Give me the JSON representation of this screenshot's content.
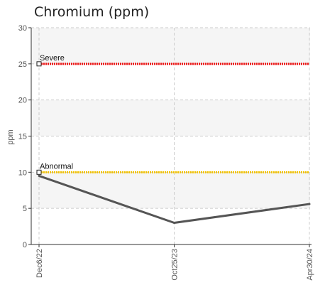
{
  "chart_data": {
    "type": "line",
    "title": "Chromium (ppm)",
    "ylabel": "ppm",
    "xlabel": "",
    "ylim": [
      0,
      30
    ],
    "yticks": [
      0,
      5,
      10,
      15,
      20,
      25,
      30
    ],
    "categories": [
      "Dec6/22",
      "Oct25/23",
      "Apr30/24"
    ],
    "series": [
      {
        "values": [
          9.5,
          3.0,
          5.6
        ],
        "color": "#555555"
      }
    ],
    "thresholds": [
      {
        "name": "Severe",
        "value": 25,
        "color": "#ee1111"
      },
      {
        "name": "Abnormal",
        "value": 10,
        "color": "#f2c200"
      }
    ],
    "grid": true,
    "legend": "none"
  }
}
